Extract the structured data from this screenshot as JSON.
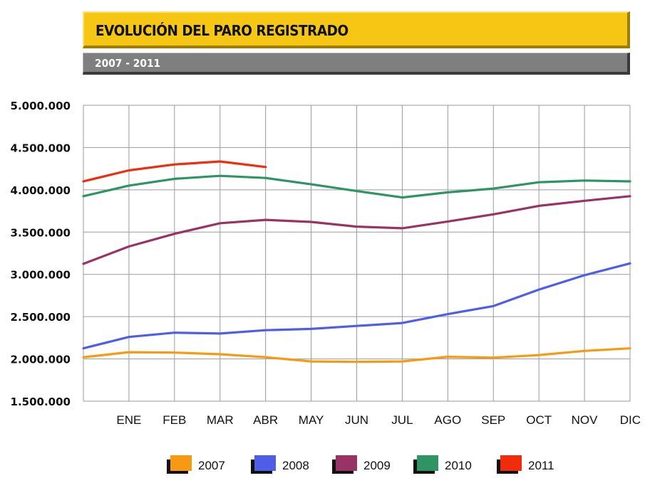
{
  "header": {
    "title": "EVOLUCIÓN DEL PARO REGISTRADO",
    "subtitle": "2007 - 2011"
  },
  "chart_data": {
    "type": "line",
    "title": "EVOLUCIÓN DEL PARO REGISTRADO",
    "subtitle": "2007 - 2011",
    "xlabel": "",
    "ylabel": "",
    "categories": [
      "",
      "ENE",
      "FEB",
      "MAR",
      "ABR",
      "MAY",
      "JUN",
      "JUL",
      "AGO",
      "SEP",
      "OCT",
      "NOV",
      "DIC"
    ],
    "ylim": [
      1500000,
      5000000
    ],
    "yticks": [
      1500000,
      2000000,
      2500000,
      3000000,
      3500000,
      4000000,
      4500000,
      5000000
    ],
    "ytick_labels": [
      "1.500.000",
      "2.000.000",
      "2.500.000",
      "3.000.000",
      "3.500.000",
      "4.000.000",
      "4.500.000",
      "5.000.000"
    ],
    "grid": true,
    "legend_position": "bottom",
    "series": [
      {
        "name": "2007",
        "color": "#f59a12",
        "values": [
          2020000,
          2080000,
          2075000,
          2055000,
          2020000,
          1970000,
          1965000,
          1970000,
          2025000,
          2015000,
          2045000,
          2095000,
          2125000
        ]
      },
      {
        "name": "2008",
        "color": "#4f5ee6",
        "values": [
          2125000,
          2260000,
          2310000,
          2300000,
          2340000,
          2355000,
          2390000,
          2425000,
          2530000,
          2625000,
          2820000,
          2990000,
          3130000
        ]
      },
      {
        "name": "2009",
        "color": "#993366",
        "values": [
          3125000,
          3330000,
          3480000,
          3605000,
          3645000,
          3620000,
          3565000,
          3545000,
          3625000,
          3710000,
          3810000,
          3870000,
          3925000
        ]
      },
      {
        "name": "2010",
        "color": "#2e9463",
        "values": [
          3925000,
          4050000,
          4130000,
          4165000,
          4140000,
          4065000,
          3985000,
          3910000,
          3970000,
          4015000,
          4090000,
          4110000,
          4100000
        ]
      },
      {
        "name": "2011",
        "color": "#ef2d0c",
        "values": [
          4100000,
          4230000,
          4300000,
          4335000,
          4270000,
          null,
          null,
          null,
          null,
          null,
          null,
          null,
          null
        ]
      }
    ]
  }
}
